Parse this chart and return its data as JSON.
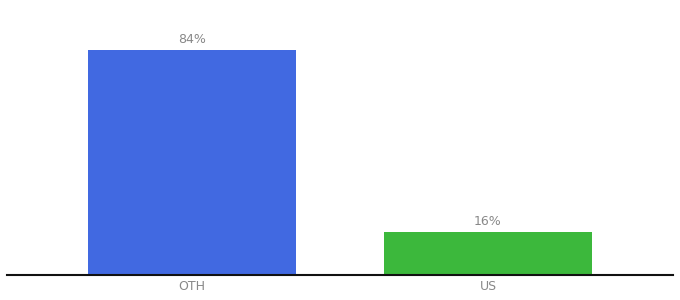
{
  "categories": [
    "OTH",
    "US"
  ],
  "values": [
    84,
    16
  ],
  "bar_colors": [
    "#4169e1",
    "#3cb83c"
  ],
  "labels": [
    "84%",
    "16%"
  ],
  "background_color": "#ffffff",
  "ylim": [
    0,
    100
  ],
  "bar_width": 0.28,
  "positions": [
    0.3,
    0.7
  ],
  "label_fontsize": 9,
  "tick_fontsize": 9,
  "label_color": "#888888"
}
